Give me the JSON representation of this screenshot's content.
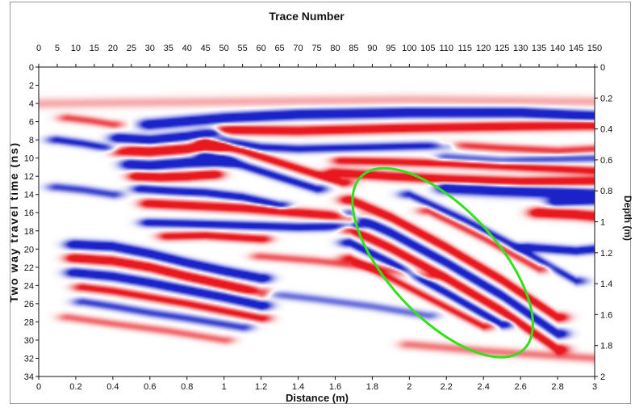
{
  "chart_data": {
    "type": "heatmap",
    "title": "Trace Number",
    "xlabel": "Distance (m)",
    "ylabel": "Two way travel time (ns)",
    "ylabel_right": "Depth (m)",
    "top_axis": {
      "label": "Trace Number",
      "ticks": [
        "0",
        "5",
        "10",
        "15",
        "20",
        "25",
        "30",
        "35",
        "40",
        "45",
        "50",
        "55",
        "60",
        "65",
        "70",
        "75",
        "80",
        "85",
        "90",
        "95",
        "100",
        "105",
        "110",
        "115",
        "120",
        "125",
        "130",
        "135",
        "140",
        "145",
        "150"
      ],
      "range": [
        0,
        150
      ]
    },
    "bottom_axis": {
      "label": "Distance (m)",
      "ticks": [
        "0",
        "0.2",
        "0.4",
        "0.6",
        "0.8",
        "1",
        "1.2",
        "1.4",
        "1.6",
        "1.8",
        "2",
        "2.2",
        "2.4",
        "2.6",
        "2.8",
        "3"
      ],
      "range": [
        0,
        3
      ]
    },
    "left_axis": {
      "label": "Two way travel time (ns)",
      "ticks": [
        "0",
        "2",
        "4",
        "6",
        "8",
        "10",
        "12",
        "14",
        "16",
        "18",
        "20",
        "22",
        "24",
        "26",
        "28",
        "30",
        "32",
        "34"
      ],
      "range": [
        0,
        34
      ]
    },
    "right_axis": {
      "label": "Depth (m)",
      "ticks": [
        "0",
        "0.2",
        "0.4",
        "0.6",
        "0.8",
        "1",
        "1.2",
        "1.4",
        "1.6",
        "1.8",
        "2"
      ],
      "range": [
        0,
        2
      ]
    },
    "colors": {
      "positive": "#e8181e",
      "negative": "#1a23c8",
      "zero": "#ffffff",
      "annotation": "#33e019"
    },
    "reflectors": [
      {
        "x": [
          30,
          50,
          70,
          100,
          130,
          150
        ],
        "t": [
          6.3,
          5.6,
          5.2,
          5.0,
          5.0,
          5.4
        ],
        "amp": -1.0,
        "w": 0.55
      },
      {
        "x": [
          50,
          70,
          100,
          130,
          150
        ],
        "t": [
          6.9,
          7.0,
          6.7,
          6.5,
          6.4
        ],
        "amp": 0.95,
        "w": 0.5
      },
      {
        "x": [
          50,
          60,
          70,
          90,
          110
        ],
        "t": [
          8.1,
          8.8,
          9.0,
          8.8,
          8.6
        ],
        "amp": -0.75,
        "w": 0.45
      },
      {
        "x": [
          22,
          30,
          40,
          47
        ],
        "t": [
          7.8,
          8.0,
          7.6,
          7.2
        ],
        "amp": -1.0,
        "w": 0.5
      },
      {
        "x": [
          22,
          30,
          40,
          48
        ],
        "t": [
          9.2,
          9.3,
          9.0,
          8.7
        ],
        "amp": 1.0,
        "w": 0.55
      },
      {
        "x": [
          25,
          30,
          40,
          50
        ],
        "t": [
          10.7,
          10.8,
          10.5,
          10.4
        ],
        "amp": -1.0,
        "w": 0.55
      },
      {
        "x": [
          27,
          33,
          40,
          47
        ],
        "t": [
          12.0,
          12.1,
          12.0,
          11.8
        ],
        "amp": 1.0,
        "w": 0.5
      },
      {
        "x": [
          28,
          35,
          45,
          55,
          65
        ],
        "t": [
          13.4,
          13.6,
          13.8,
          14.3,
          15.2
        ],
        "amp": -0.85,
        "w": 0.45
      },
      {
        "x": [
          30,
          40,
          55,
          70,
          85
        ],
        "t": [
          15.0,
          15.2,
          15.5,
          16.0,
          16.5
        ],
        "amp": 0.9,
        "w": 0.5
      },
      {
        "x": [
          30,
          40,
          55,
          70,
          85
        ],
        "t": [
          17.1,
          17.2,
          17.4,
          17.6,
          17.5
        ],
        "amp": -0.85,
        "w": 0.45
      },
      {
        "x": [
          35,
          45,
          60
        ],
        "t": [
          18.6,
          18.5,
          18.9
        ],
        "amp": 0.8,
        "w": 0.45
      },
      {
        "x": [
          45,
          55,
          65,
          75,
          82
        ],
        "t": [
          8.2,
          9.2,
          10.5,
          11.8,
          12.7
        ],
        "amp": 0.85,
        "w": 0.45
      },
      {
        "x": [
          45,
          55,
          65,
          75
        ],
        "t": [
          9.7,
          10.8,
          12.1,
          13.4
        ],
        "amp": -0.8,
        "w": 0.45
      },
      {
        "x": [
          82,
          95,
          110,
          130,
          150
        ],
        "t": [
          10.3,
          10.4,
          10.6,
          11.0,
          11.4
        ],
        "amp": 0.8,
        "w": 0.45
      },
      {
        "x": [
          80,
          95,
          110,
          130,
          150
        ],
        "t": [
          11.6,
          12.0,
          12.3,
          12.6,
          12.5
        ],
        "amp": 0.95,
        "w": 0.5
      },
      {
        "x": [
          110,
          125,
          140,
          150
        ],
        "t": [
          13.3,
          13.6,
          13.8,
          14.0
        ],
        "amp": -1.0,
        "w": 0.6
      },
      {
        "x": [
          135,
          145,
          150
        ],
        "t": [
          16.0,
          16.2,
          16.4
        ],
        "amp": 1.0,
        "w": 0.55
      },
      {
        "x": [
          132,
          145,
          150
        ],
        "t": [
          19.8,
          20.2,
          20.0
        ],
        "amp": -0.9,
        "w": 0.45
      },
      {
        "x": [
          140,
          150
        ],
        "t": [
          14.8,
          14.6
        ],
        "amp": -0.9,
        "w": 0.5
      },
      {
        "x": [
          84,
          95,
          110,
          125,
          140
        ],
        "t": [
          14.6,
          16.5,
          19.8,
          23.4,
          27.5
        ],
        "amp": 1.0,
        "w": 0.5
      },
      {
        "x": [
          84,
          95,
          110,
          125,
          140
        ],
        "t": [
          16.2,
          18.2,
          21.5,
          25.1,
          29.3
        ],
        "amp": -1.0,
        "w": 0.5
      },
      {
        "x": [
          84,
          95,
          110,
          125,
          140
        ],
        "t": [
          17.8,
          19.9,
          23.2,
          26.8,
          31.0
        ],
        "amp": 1.0,
        "w": 0.5
      },
      {
        "x": [
          84,
          95,
          110,
          125
        ],
        "t": [
          19.3,
          21.5,
          24.8,
          28.3
        ],
        "amp": -0.9,
        "w": 0.45
      },
      {
        "x": [
          84,
          95,
          110,
          120
        ],
        "t": [
          21.0,
          23.2,
          26.4,
          28.5
        ],
        "amp": 0.7,
        "w": 0.45
      },
      {
        "x": [
          100,
          115,
          130,
          145
        ],
        "t": [
          14.0,
          16.8,
          20.0,
          23.5
        ],
        "amp": -0.7,
        "w": 0.45
      },
      {
        "x": [
          105,
          120,
          135
        ],
        "t": [
          15.8,
          18.8,
          22.2
        ],
        "amp": 0.6,
        "w": 0.45
      },
      {
        "x": [
          10,
          20,
          30,
          40,
          50,
          60
        ],
        "t": [
          19.5,
          19.7,
          20.5,
          21.5,
          22.4,
          23.2
        ],
        "amp": -1.0,
        "w": 0.5
      },
      {
        "x": [
          10,
          20,
          30,
          40,
          50,
          60
        ],
        "t": [
          21.0,
          21.3,
          22.0,
          23.0,
          23.9,
          24.8
        ],
        "amp": 1.0,
        "w": 0.5
      },
      {
        "x": [
          10,
          20,
          30,
          40,
          50,
          60
        ],
        "t": [
          22.6,
          23.0,
          23.7,
          24.5,
          25.3,
          26.2
        ],
        "amp": -0.95,
        "w": 0.5
      },
      {
        "x": [
          12,
          20,
          30,
          40,
          50,
          60
        ],
        "t": [
          24.2,
          24.6,
          25.3,
          26.0,
          26.8,
          27.6
        ],
        "amp": 0.75,
        "w": 0.45
      },
      {
        "x": [
          12,
          20,
          30,
          40,
          55
        ],
        "t": [
          25.8,
          26.3,
          27.0,
          27.6,
          28.6
        ],
        "amp": -0.6,
        "w": 0.45
      },
      {
        "x": [
          8,
          20,
          35,
          50
        ],
        "t": [
          27.5,
          28.2,
          29.0,
          30.0
        ],
        "amp": 0.45,
        "w": 0.45
      },
      {
        "x": [
          5,
          12,
          20
        ],
        "t": [
          8.0,
          8.4,
          9.0
        ],
        "amp": -0.7,
        "w": 0.45
      },
      {
        "x": [
          5,
          12,
          20
        ],
        "t": [
          13.2,
          13.5,
          14.0
        ],
        "amp": -0.6,
        "w": 0.45
      },
      {
        "x": [
          8,
          14,
          20
        ],
        "t": [
          5.6,
          5.9,
          6.3
        ],
        "amp": 0.55,
        "w": 0.45
      },
      {
        "x": [
          110,
          125,
          140,
          150
        ],
        "t": [
          8.5,
          8.9,
          9.2,
          9.0
        ],
        "amp": 0.6,
        "w": 0.45
      },
      {
        "x": [
          110,
          125,
          140,
          150
        ],
        "t": [
          9.9,
          10.3,
          10.1,
          10.0
        ],
        "amp": -0.55,
        "w": 0.45
      },
      {
        "x": [
          60,
          75,
          90,
          105
        ],
        "t": [
          20.8,
          21.3,
          22.0,
          23.0
        ],
        "amp": 0.5,
        "w": 0.45
      },
      {
        "x": [
          60,
          75,
          90,
          105
        ],
        "t": [
          24.8,
          25.5,
          26.3,
          27.3
        ],
        "amp": -0.45,
        "w": 0.45
      },
      {
        "x": [
          100,
          120,
          150
        ],
        "t": [
          30.5,
          31.2,
          32.0
        ],
        "amp": 0.4,
        "w": 0.5
      },
      {
        "x": [
          0,
          50,
          100,
          150
        ],
        "t": [
          4.0,
          3.8,
          3.6,
          3.8
        ],
        "amp": 0.25,
        "w": 0.6
      }
    ],
    "annotation": {
      "type": "ellipse",
      "center": {
        "trace": 109,
        "t": 21.5
      },
      "semi_axes": {
        "trace": 32,
        "t": 6.0
      },
      "angle_deg": 47
    }
  }
}
